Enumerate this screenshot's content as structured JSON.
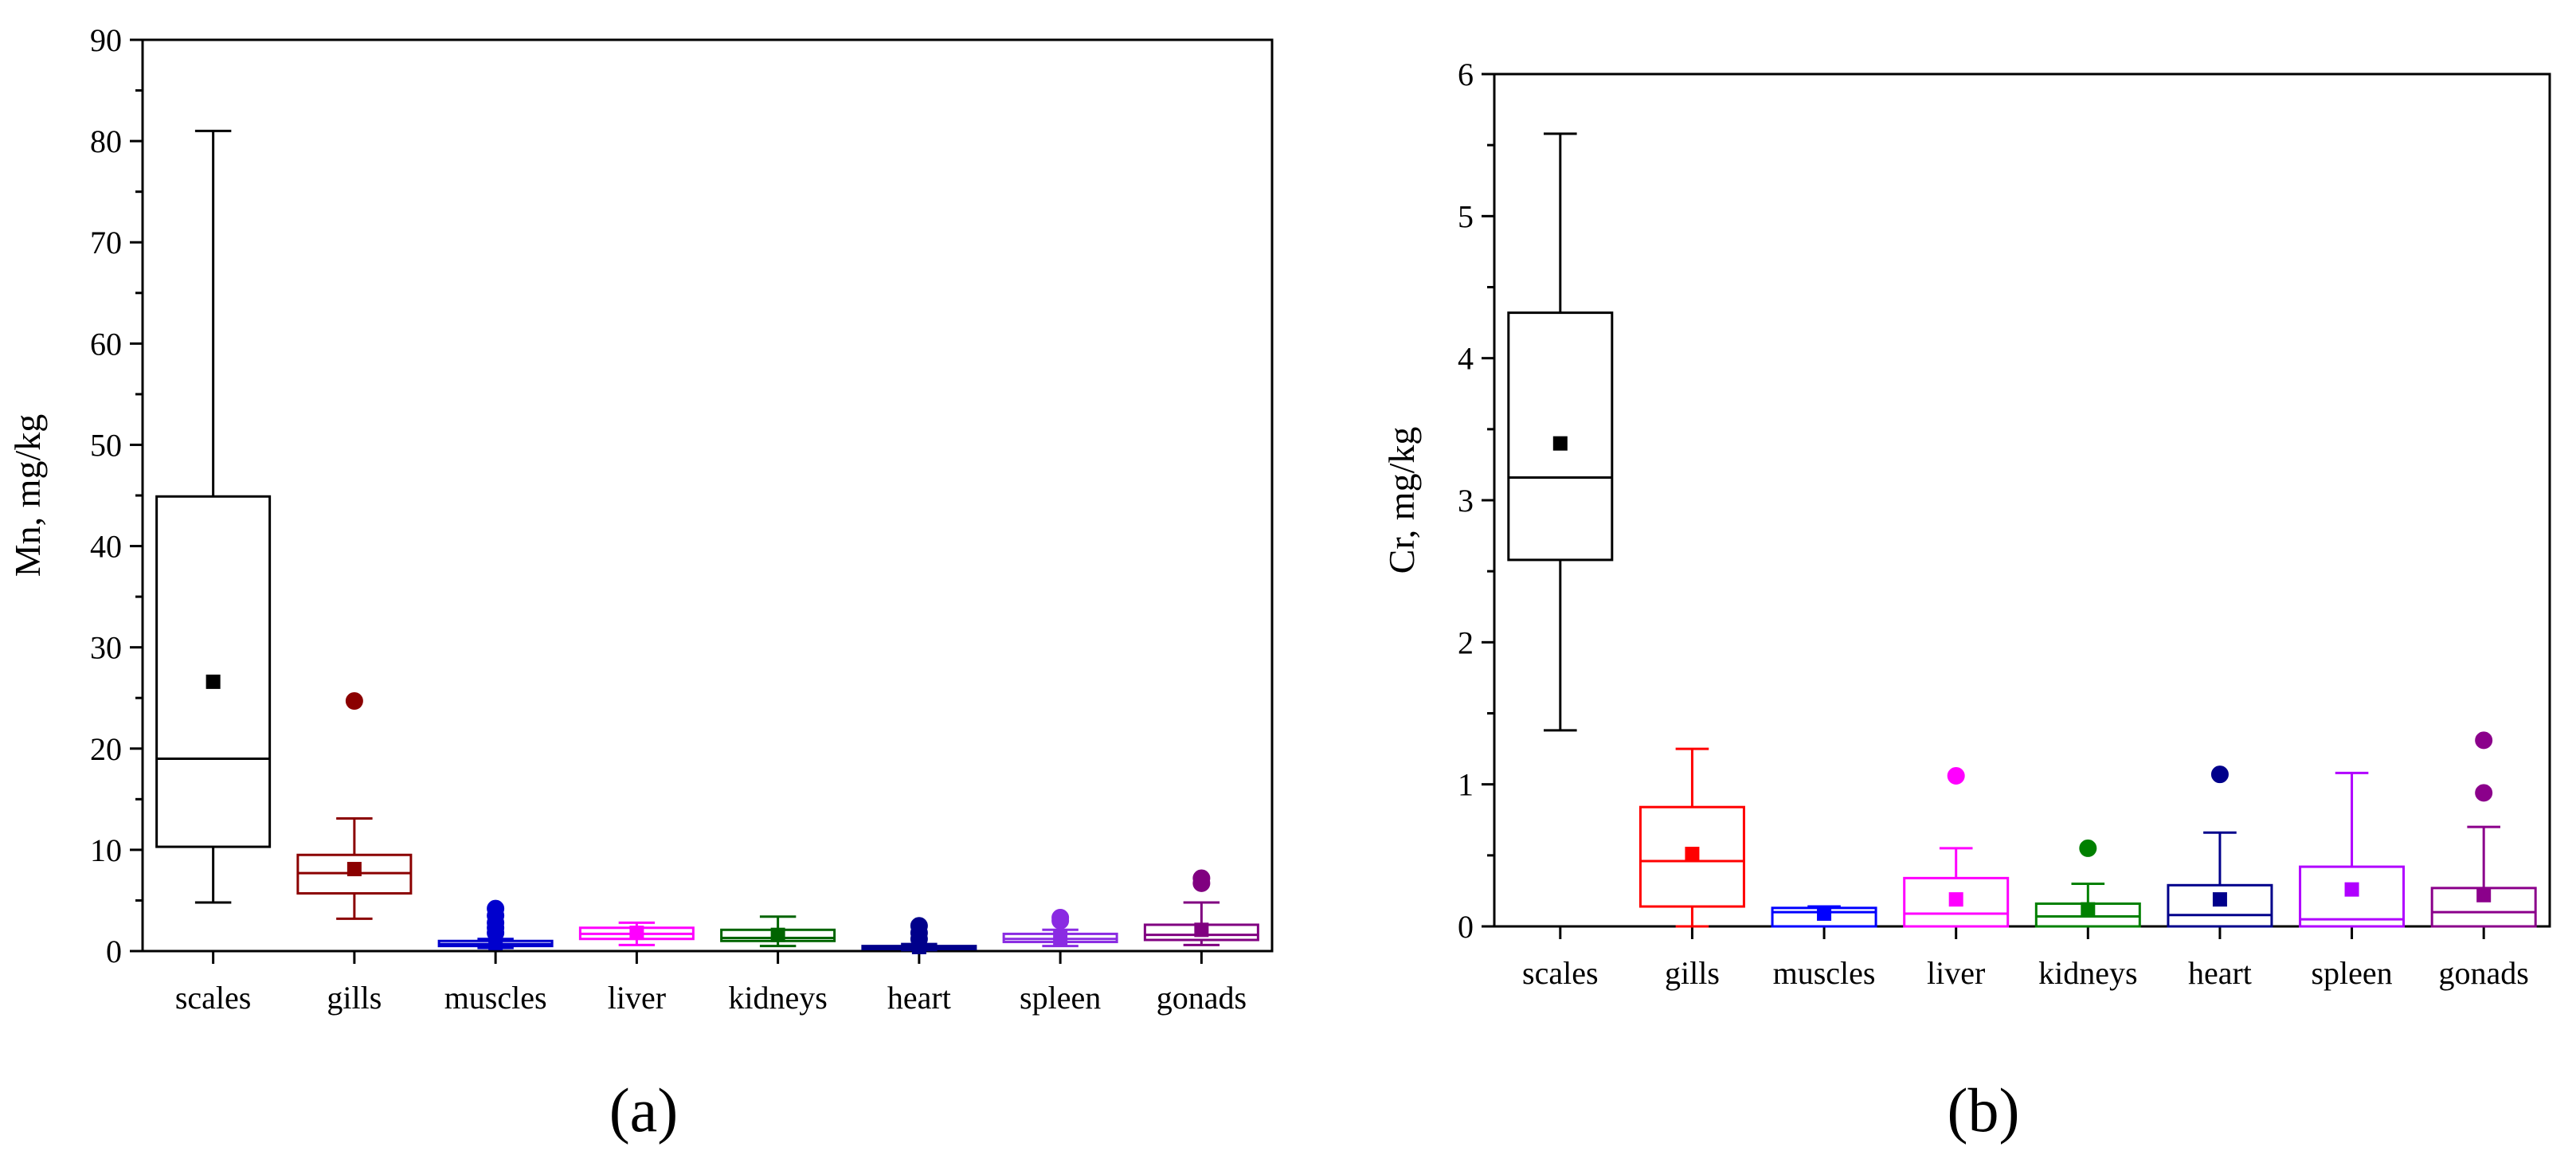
{
  "chart_data": [
    {
      "type": "box",
      "panel_label": "(a)",
      "ylabel": "Mn, mg/kg",
      "xlabel": "",
      "ylim": [
        0,
        90
      ],
      "yticks": [
        0,
        10,
        20,
        30,
        40,
        50,
        60,
        70,
        80,
        90
      ],
      "categories": [
        "scales",
        "gills",
        "muscles",
        "liver",
        "kidneys",
        "heart",
        "spleen",
        "gonads"
      ],
      "series": [
        {
          "name": "scales",
          "color": "#000000",
          "whisker_low": 4.8,
          "q1": 10.3,
          "median": 19.0,
          "q3": 44.9,
          "whisker_high": 81.0,
          "mean": 26.6,
          "outliers": []
        },
        {
          "name": "gills",
          "color": "#8B0000",
          "whisker_low": 3.2,
          "q1": 5.7,
          "median": 7.7,
          "q3": 9.5,
          "whisker_high": 13.1,
          "mean": 8.1,
          "outliers": [
            24.7
          ]
        },
        {
          "name": "muscles",
          "color": "#0000CD",
          "whisker_low": 0.3,
          "q1": 0.5,
          "median": 0.7,
          "q3": 1.0,
          "whisker_high": 1.2,
          "mean": 0.8,
          "outliers": [
            1.8,
            2.3,
            2.8,
            3.5,
            4.2
          ]
        },
        {
          "name": "liver",
          "color": "#FF00FF",
          "whisker_low": 0.6,
          "q1": 1.2,
          "median": 1.7,
          "q3": 2.3,
          "whisker_high": 2.8,
          "mean": 1.8,
          "outliers": []
        },
        {
          "name": "kidneys",
          "color": "#006400",
          "whisker_low": 0.5,
          "q1": 1.0,
          "median": 1.3,
          "q3": 2.1,
          "whisker_high": 3.4,
          "mean": 1.6,
          "outliers": []
        },
        {
          "name": "heart",
          "color": "#00008B",
          "whisker_low": 0.1,
          "q1": 0.2,
          "median": 0.3,
          "q3": 0.5,
          "whisker_high": 0.7,
          "mean": 0.4,
          "outliers": [
            1.2,
            1.8,
            2.5
          ]
        },
        {
          "name": "spleen",
          "color": "#8A2BE2",
          "whisker_low": 0.5,
          "q1": 0.9,
          "median": 1.2,
          "q3": 1.7,
          "whisker_high": 2.1,
          "mean": 1.3,
          "outliers": [
            3.0,
            3.3
          ]
        },
        {
          "name": "gonads",
          "color": "#800080",
          "whisker_low": 0.6,
          "q1": 1.1,
          "median": 1.6,
          "q3": 2.6,
          "whisker_high": 4.8,
          "mean": 2.1,
          "outliers": [
            6.7,
            7.2
          ]
        }
      ]
    },
    {
      "type": "box",
      "panel_label": "(b)",
      "ylabel": "Cr, mg/kg",
      "xlabel": "",
      "ylim": [
        0,
        6
      ],
      "yticks": [
        0,
        1,
        2,
        3,
        4,
        5,
        6
      ],
      "categories": [
        "scales",
        "gills",
        "muscles",
        "liver",
        "kidneys",
        "heart",
        "spleen",
        "gonads"
      ],
      "series": [
        {
          "name": "scales",
          "color": "#000000",
          "whisker_low": 1.38,
          "q1": 2.58,
          "median": 3.16,
          "q3": 4.32,
          "whisker_high": 5.58,
          "mean": 3.4,
          "outliers": []
        },
        {
          "name": "gills",
          "color": "#FF0000",
          "whisker_low": 0.0,
          "q1": 0.14,
          "median": 0.46,
          "q3": 0.84,
          "whisker_high": 1.25,
          "mean": 0.51,
          "outliers": []
        },
        {
          "name": "muscles",
          "color": "#0000FF",
          "whisker_low": 0.0,
          "q1": 0.0,
          "median": 0.1,
          "q3": 0.13,
          "whisker_high": 0.14,
          "mean": 0.09,
          "outliers": []
        },
        {
          "name": "liver",
          "color": "#FF00FF",
          "whisker_low": 0.0,
          "q1": 0.0,
          "median": 0.09,
          "q3": 0.34,
          "whisker_high": 0.55,
          "mean": 0.19,
          "outliers": [
            1.06
          ]
        },
        {
          "name": "kidneys",
          "color": "#008000",
          "whisker_low": 0.0,
          "q1": 0.0,
          "median": 0.07,
          "q3": 0.16,
          "whisker_high": 0.3,
          "mean": 0.12,
          "outliers": [
            0.55
          ]
        },
        {
          "name": "heart",
          "color": "#00008B",
          "whisker_low": 0.0,
          "q1": 0.0,
          "median": 0.08,
          "q3": 0.29,
          "whisker_high": 0.66,
          "mean": 0.19,
          "outliers": [
            1.07
          ]
        },
        {
          "name": "spleen",
          "color": "#B000FF",
          "whisker_low": 0.0,
          "q1": 0.0,
          "median": 0.05,
          "q3": 0.42,
          "whisker_high": 1.08,
          "mean": 0.26,
          "outliers": []
        },
        {
          "name": "gonads",
          "color": "#8B008B",
          "whisker_low": 0.0,
          "q1": 0.0,
          "median": 0.1,
          "q3": 0.27,
          "whisker_high": 0.7,
          "mean": 0.22,
          "outliers": [
            0.94,
            1.31
          ]
        }
      ]
    }
  ]
}
